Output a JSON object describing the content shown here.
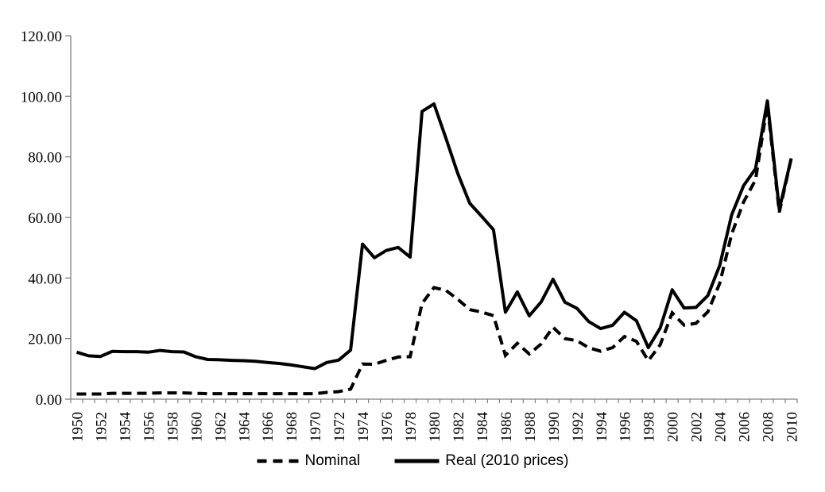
{
  "chart_data": {
    "type": "line",
    "title": "",
    "xlabel": "",
    "ylabel": "",
    "ylim": [
      0,
      120
    ],
    "grid": false,
    "legend_position": "bottom-center",
    "background": "#ffffff",
    "colors": {
      "line": "#000000",
      "axis": "#808080",
      "text": "#000000"
    },
    "y_tick_labels": [
      "0.00",
      "20.00",
      "40.00",
      "60.00",
      "80.00",
      "100.00",
      "120.00"
    ],
    "x_tick_labels": [
      "1950",
      "1952",
      "1954",
      "1956",
      "1958",
      "1960",
      "1962",
      "1964",
      "1966",
      "1968",
      "1970",
      "1972",
      "1974",
      "1976",
      "1978",
      "1980",
      "1982",
      "1984",
      "1986",
      "1988",
      "1990",
      "1992",
      "1994",
      "1996",
      "1998",
      "2000",
      "2002",
      "2004",
      "2006",
      "2008",
      "2010"
    ],
    "x": [
      1950,
      1951,
      1952,
      1953,
      1954,
      1955,
      1956,
      1957,
      1958,
      1959,
      1960,
      1961,
      1962,
      1963,
      1964,
      1965,
      1966,
      1967,
      1968,
      1969,
      1970,
      1971,
      1972,
      1973,
      1974,
      1975,
      1976,
      1977,
      1978,
      1979,
      1980,
      1981,
      1982,
      1983,
      1984,
      1985,
      1986,
      1987,
      1988,
      1989,
      1990,
      1991,
      1992,
      1993,
      1994,
      1995,
      1996,
      1997,
      1998,
      1999,
      2000,
      2001,
      2002,
      2003,
      2004,
      2005,
      2006,
      2007,
      2008,
      2009,
      2010
    ],
    "series": [
      {
        "name": "Nominal",
        "style": "dashed",
        "values": [
          1.71,
          1.71,
          1.71,
          1.93,
          1.93,
          1.93,
          1.93,
          2.08,
          2.08,
          2.08,
          1.9,
          1.8,
          1.8,
          1.8,
          1.8,
          1.8,
          1.8,
          1.8,
          1.8,
          1.8,
          1.8,
          2.24,
          2.48,
          3.29,
          11.58,
          11.53,
          12.8,
          13.92,
          14.02,
          31.61,
          36.83,
          35.93,
          32.97,
          29.55,
          28.78,
          27.56,
          14.43,
          18.44,
          14.92,
          18.23,
          23.73,
          20.0,
          19.32,
          16.97,
          15.82,
          17.02,
          20.67,
          19.09,
          12.72,
          17.97,
          28.5,
          24.44,
          25.02,
          28.83,
          38.27,
          54.52,
          65.14,
          72.39,
          97.26,
          61.67,
          79.5
        ]
      },
      {
        "name": "Real (2010 prices)",
        "style": "solid",
        "values": [
          15.5,
          14.3,
          14.1,
          15.8,
          15.7,
          15.7,
          15.5,
          16.1,
          15.7,
          15.6,
          14.0,
          13.1,
          13.0,
          12.8,
          12.7,
          12.5,
          12.1,
          11.8,
          11.3,
          10.7,
          10.1,
          12.1,
          12.9,
          16.2,
          51.2,
          46.7,
          49.1,
          50.1,
          46.9,
          95.0,
          97.5,
          86.2,
          74.5,
          64.7,
          60.4,
          55.9,
          28.7,
          35.4,
          27.5,
          32.1,
          39.6,
          32.0,
          30.0,
          25.6,
          23.3,
          24.4,
          28.7,
          25.9,
          17.0,
          23.5,
          36.1,
          30.1,
          30.3,
          34.2,
          44.2,
          60.9,
          70.5,
          76.1,
          98.5,
          62.7,
          79.5
        ]
      }
    ]
  },
  "legend": {
    "nominal_label": "Nominal",
    "real_label": "Real (2010 prices)"
  }
}
